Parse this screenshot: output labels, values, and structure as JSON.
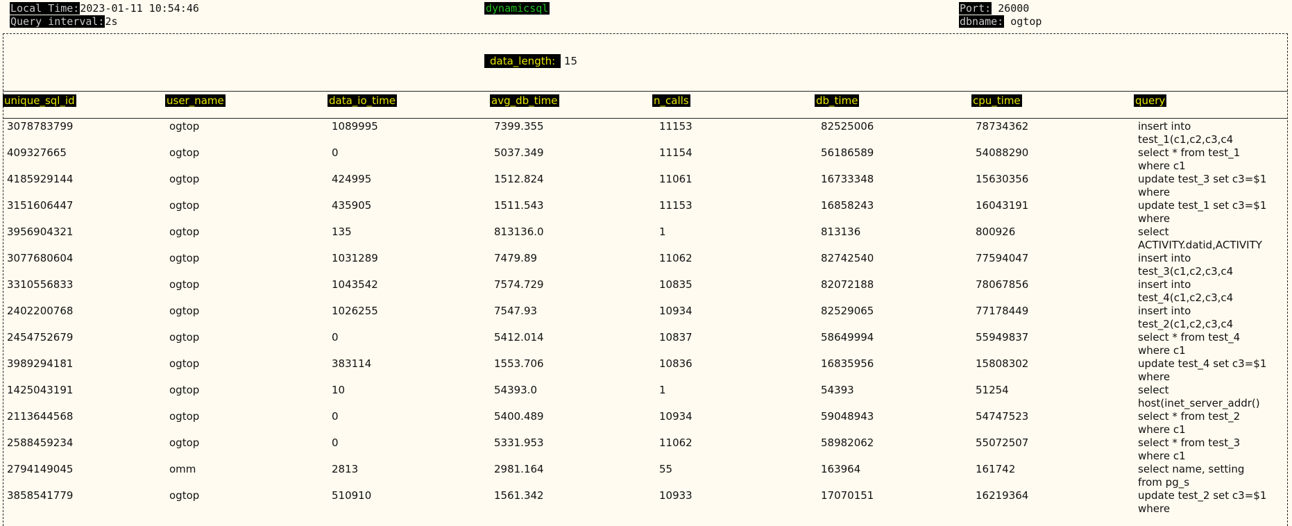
{
  "header": {
    "local_time_label": "Local Time:",
    "local_time_value": "2023-01-11 10:54:46",
    "query_interval_label": "Query interval:",
    "query_interval_value": "2s",
    "view_name": "dynamicsql",
    "port_label": "Port:",
    "port_value": "26000",
    "dbname_label": "dbname:",
    "dbname_value": "ogtop"
  },
  "data_length": {
    "label": "data_length:",
    "value": "15"
  },
  "columns": [
    "unique_sql_id",
    "user_name",
    "data_io_time",
    "avg_db_time",
    "n_calls",
    "db_time",
    "cpu_time",
    "query"
  ],
  "rows": [
    [
      "3078783799",
      "ogtop",
      "1089995",
      "7399.355",
      "11153",
      "82525006",
      "78734362",
      "insert into\ntest_1(c1,c2,c3,c4"
    ],
    [
      "409327665",
      "ogtop",
      "0",
      "5037.349",
      "11154",
      "56186589",
      "54088290",
      "select * from test_1\nwhere c1"
    ],
    [
      "4185929144",
      "ogtop",
      "424995",
      "1512.824",
      "11061",
      "16733348",
      "15630356",
      "update test_3 set c3=$1\nwhere"
    ],
    [
      "3151606447",
      "ogtop",
      "435905",
      "1511.543",
      "11153",
      "16858243",
      "16043191",
      "update test_1 set c3=$1\nwhere"
    ],
    [
      "3956904321",
      "ogtop",
      "135",
      "813136.0",
      "1",
      "813136",
      "800926",
      "select\nACTIVITY.datid,ACTIVITY"
    ],
    [
      "3077680604",
      "ogtop",
      "1031289",
      "7479.89",
      "11062",
      "82742540",
      "77594047",
      "insert into\ntest_3(c1,c2,c3,c4"
    ],
    [
      "3310556833",
      "ogtop",
      "1043542",
      "7574.729",
      "10835",
      "82072188",
      "78067856",
      "insert into\ntest_4(c1,c2,c3,c4"
    ],
    [
      "2402200768",
      "ogtop",
      "1026255",
      "7547.93",
      "10934",
      "82529065",
      "77178449",
      "insert into\ntest_2(c1,c2,c3,c4"
    ],
    [
      "2454752679",
      "ogtop",
      "0",
      "5412.014",
      "10837",
      "58649994",
      "55949837",
      "select * from test_4\nwhere c1"
    ],
    [
      "3989294181",
      "ogtop",
      "383114",
      "1553.706",
      "10836",
      "16835956",
      "15808302",
      "update test_4 set c3=$1\nwhere"
    ],
    [
      "1425043191",
      "ogtop",
      "10",
      "54393.0",
      "1",
      "54393",
      "51254",
      "select\nhost(inet_server_addr()"
    ],
    [
      "2113644568",
      "ogtop",
      "0",
      "5400.489",
      "10934",
      "59048943",
      "54747523",
      "select * from test_2\nwhere c1"
    ],
    [
      "2588459234",
      "ogtop",
      "0",
      "5331.953",
      "11062",
      "58982062",
      "55072507",
      "select * from test_3\nwhere c1"
    ],
    [
      "2794149045",
      "omm",
      "2813",
      "2981.164",
      "55",
      "163964",
      "161742",
      "select name, setting\nfrom pg_s"
    ],
    [
      "3858541779",
      "ogtop",
      "510910",
      "1561.342",
      "10933",
      "17070151",
      "16219364",
      "update test_2 set c3=$1\nwhere"
    ]
  ]
}
